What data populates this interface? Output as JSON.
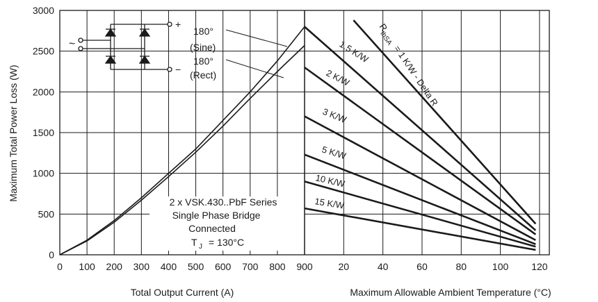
{
  "chart_data": [
    {
      "type": "line",
      "xlabel": "Total Output Current (A)",
      "ylabel": "Maximum Total Power Loss (W)",
      "xlim": [
        0,
        900
      ],
      "ylim": [
        0,
        3000
      ],
      "x_ticks": [
        "0",
        "100",
        "200",
        "300",
        "400",
        "500",
        "600",
        "700",
        "800",
        "900"
      ],
      "y_ticks": [
        "0",
        "500",
        "1000",
        "1500",
        "2000",
        "2500",
        "3000"
      ],
      "grid": true,
      "series": [
        {
          "name": "180° (Sine)",
          "x": [
            0,
            100,
            200,
            300,
            400,
            500,
            600,
            700,
            800,
            900
          ],
          "y": [
            0,
            180,
            420,
            700,
            1000,
            1300,
            1650,
            2000,
            2380,
            2800
          ]
        },
        {
          "name": "180° (Rect)",
          "x": [
            0,
            100,
            200,
            300,
            400,
            500,
            600,
            700,
            800,
            900
          ],
          "y": [
            0,
            170,
            400,
            670,
            960,
            1260,
            1580,
            1920,
            2250,
            2570
          ]
        }
      ],
      "annotations": {
        "sine_top": "180°",
        "sine_bottom": "(Sine)",
        "rect_top": "180°",
        "rect_bottom": "(Rect)",
        "device_line1": "2 x VSK.430..PbF Series",
        "device_line2": "Single Phase Bridge",
        "device_line3": "Connected",
        "tj_label": "T",
        "tj_sub": "J",
        "tj_value": "=  130°C",
        "ac_symbol": "~",
        "plus_symbol": "+",
        "minus_symbol": "−"
      }
    },
    {
      "type": "line",
      "xlabel": "Maximum Allowable Ambient Temperature (°C)",
      "xlim": [
        0,
        125
      ],
      "ylim": [
        0,
        3000
      ],
      "x_ticks": [
        "20",
        "40",
        "60",
        "80",
        "100",
        "120"
      ],
      "grid": true,
      "series": [
        {
          "name": "1 K/W - Delta R",
          "x": [
            25,
            118
          ],
          "y": [
            2880,
            380
          ]
        },
        {
          "name": "1.5 K/W",
          "x": [
            0,
            118
          ],
          "y": [
            2800,
            300
          ]
        },
        {
          "name": "2 K/W",
          "x": [
            0,
            118
          ],
          "y": [
            2300,
            250
          ]
        },
        {
          "name": "3 K/W",
          "x": [
            0,
            118
          ],
          "y": [
            1700,
            180
          ]
        },
        {
          "name": "5 K/W",
          "x": [
            0,
            118
          ],
          "y": [
            1230,
            130
          ]
        },
        {
          "name": "10 K/W",
          "x": [
            0,
            118
          ],
          "y": [
            900,
            100
          ]
        },
        {
          "name": "15 K/W",
          "x": [
            0,
            118
          ],
          "y": [
            570,
            60
          ]
        }
      ],
      "labels": {
        "rth_main": "R",
        "rth_sub": "thSA",
        "rth_rest": "= 1 K/W - Delta R",
        "l15": "1.5 K/W",
        "l2": "2 K/W",
        "l3": "3 K/W",
        "l5": "5 K/W",
        "l10": "10 K/W",
        "l15b": "15 K/W"
      }
    }
  ]
}
